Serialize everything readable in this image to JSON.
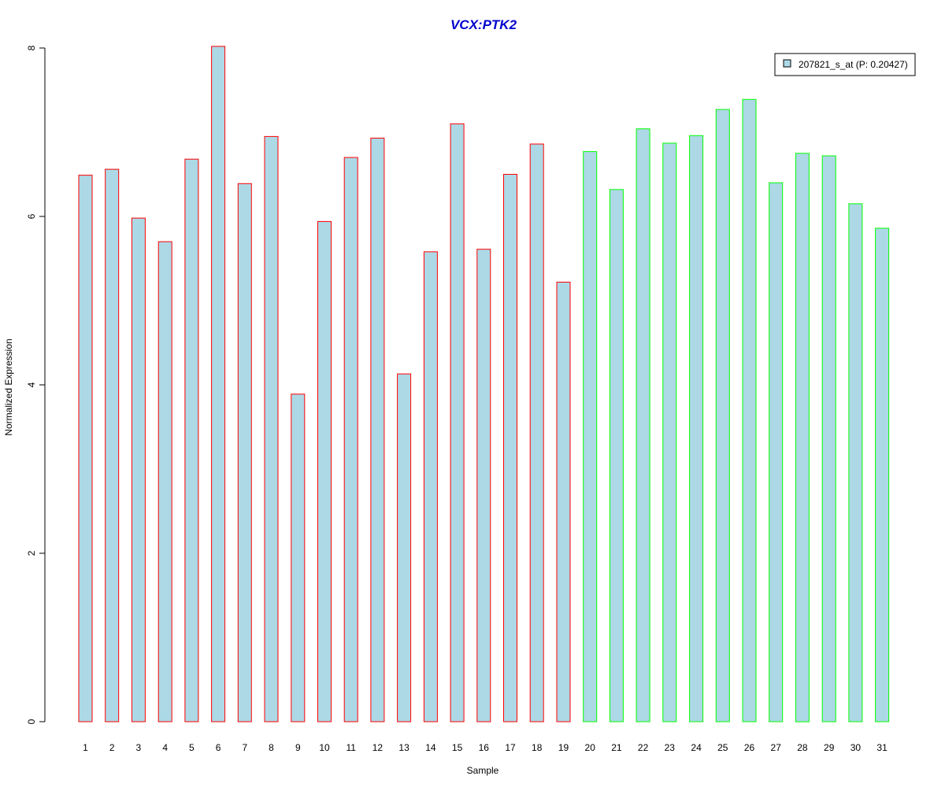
{
  "chart_data": {
    "type": "bar",
    "title": "VCX:PTK2",
    "xlabel": "Sample",
    "ylabel": "Normalized Expression",
    "ylim": [
      0,
      8
    ],
    "yticks": [
      "0",
      "2",
      "4",
      "6",
      "8"
    ],
    "grid": false,
    "legend_position": "top-right",
    "categories": [
      "1",
      "2",
      "3",
      "4",
      "5",
      "6",
      "7",
      "8",
      "9",
      "10",
      "11",
      "12",
      "13",
      "14",
      "15",
      "16",
      "17",
      "18",
      "19",
      "20",
      "21",
      "22",
      "23",
      "24",
      "25",
      "26",
      "27",
      "28",
      "29",
      "30",
      "31"
    ],
    "series": [
      {
        "name": "207821_s_at (P: 0.20427)",
        "values": [
          6.49,
          6.56,
          5.98,
          5.7,
          6.68,
          8.02,
          6.39,
          6.95,
          3.89,
          5.94,
          6.7,
          6.93,
          4.13,
          5.58,
          7.1,
          5.61,
          6.5,
          6.86,
          5.22,
          6.77,
          6.32,
          7.04,
          6.87,
          6.96,
          7.27,
          7.39,
          6.4,
          6.75,
          6.72,
          6.15,
          5.86
        ],
        "groups": [
          "red",
          "red",
          "red",
          "red",
          "red",
          "red",
          "red",
          "red",
          "red",
          "red",
          "red",
          "red",
          "red",
          "red",
          "red",
          "red",
          "red",
          "red",
          "red",
          "green",
          "green",
          "green",
          "green",
          "green",
          "green",
          "green",
          "green",
          "green",
          "green",
          "green",
          "green"
        ]
      }
    ],
    "colors": {
      "fill": "#add8e6",
      "group_red": "#ff0000",
      "group_green": "#00ff00",
      "title": "#0000cd",
      "axis": "#000000"
    }
  }
}
